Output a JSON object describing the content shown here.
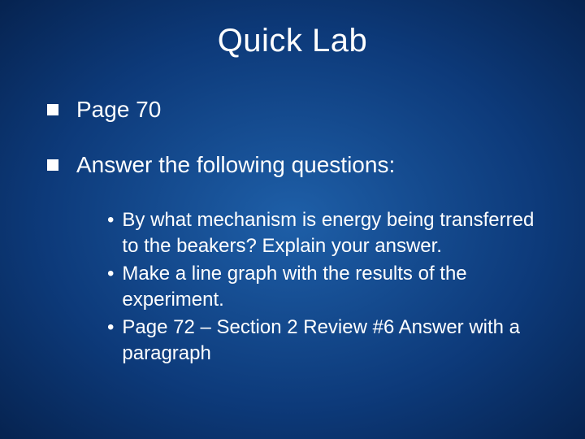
{
  "slide": {
    "title": "Quick Lab",
    "title_fontsize": 40,
    "title_color": "#ffffff",
    "background_gradient_center": "#1e5fa8",
    "background_gradient_mid": "#0d3a7a",
    "background_gradient_edge": "#062350",
    "bullet_square_color": "#ffffff",
    "bullet_square_size": 14,
    "body_fontsize_l1": 28,
    "body_fontsize_l2": 24,
    "text_color": "#ffffff",
    "bullets": [
      {
        "text": "Page 70",
        "sub": []
      },
      {
        "text": "Answer the following questions:",
        "sub": [
          "By what mechanism is energy being transferred to the beakers?  Explain your answer.",
          "Make a line graph with the results of the experiment.",
          "Page 72 – Section 2 Review #6 Answer with a paragraph"
        ]
      }
    ]
  }
}
